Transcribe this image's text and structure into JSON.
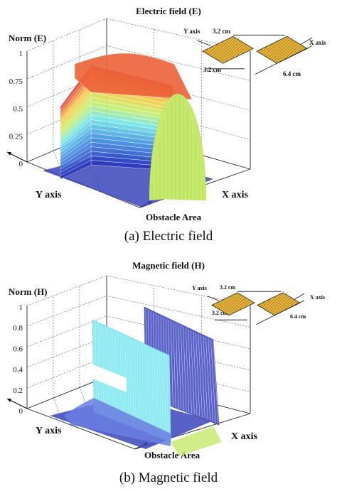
{
  "chart_data": [
    {
      "type": "surface",
      "title": "Electric field (E)",
      "zlabel": "Norm (E)",
      "xlabel": "X axis",
      "ylabel": "Y axis",
      "footer_label": "Obstacle Area",
      "zticks": [
        "1",
        "0.75",
        "0.5",
        "0.25",
        "0"
      ],
      "zlim": [
        0,
        1
      ],
      "surface_shape": "single arch over obstacle area",
      "peak_norm": 0.98,
      "colors": {
        "high": "#e53935",
        "mid": "#c6e96b",
        "low": "#2f3fbf",
        "floor": "#3845b8"
      },
      "inset": {
        "y_axis": "Y axis",
        "x_axis": "X axis",
        "top_dim": "3.2 cm",
        "left_dim": "3.2 cm",
        "right_dim": "6.4 cm"
      },
      "caption": "(a) Electric field"
    },
    {
      "type": "surface",
      "title": "Magnetic field (H)",
      "zlabel": "Norm (H)",
      "xlabel": "X axis",
      "ylabel": "Y axis",
      "footer_label": "Obstacle Area",
      "zticks": [
        "1",
        "0.8",
        "0.6",
        "0.4",
        "0.2",
        "0"
      ],
      "zlim": [
        0,
        1
      ],
      "surface_shape": "two vertical walls at obstacle edges",
      "peak_norm": 0.85,
      "colors": {
        "wall_front": "#8eeaf0",
        "wall_back": "#5a63c8",
        "floor": "#3845b8",
        "side": "#c6e96b"
      },
      "inset": {
        "y_axis": "Y axis",
        "x_axis": "X axis",
        "top_dim": "3.2 cm",
        "left_dim": "3.2 cm",
        "right_dim": "6.4 cm"
      },
      "caption": "(b) Magnetic field"
    }
  ]
}
